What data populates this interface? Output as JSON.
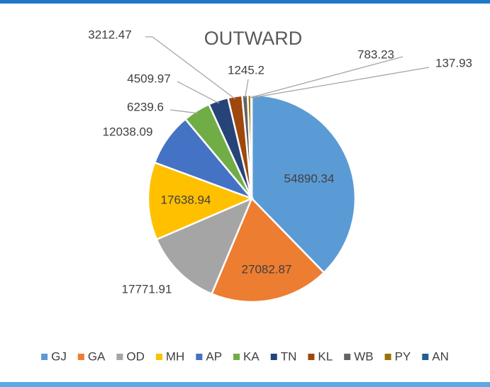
{
  "chart_data": {
    "type": "pie",
    "title": "OUTWARD",
    "categories": [
      "GJ",
      "GA",
      "OD",
      "MH",
      "AP",
      "KA",
      "TN",
      "KL",
      "WB",
      "PY",
      "AN"
    ],
    "values": [
      54890.34,
      27082.87,
      17771.91,
      17638.94,
      12038.09,
      6239.6,
      4509.97,
      3212.47,
      1245.2,
      783.23,
      137.93
    ],
    "colors": [
      "#5b9bd5",
      "#ed7d31",
      "#a5a5a5",
      "#ffc000",
      "#4472c4",
      "#70ad47",
      "#264478",
      "#9e480e",
      "#636363",
      "#997300",
      "#255e91"
    ],
    "legend": "bottom"
  }
}
